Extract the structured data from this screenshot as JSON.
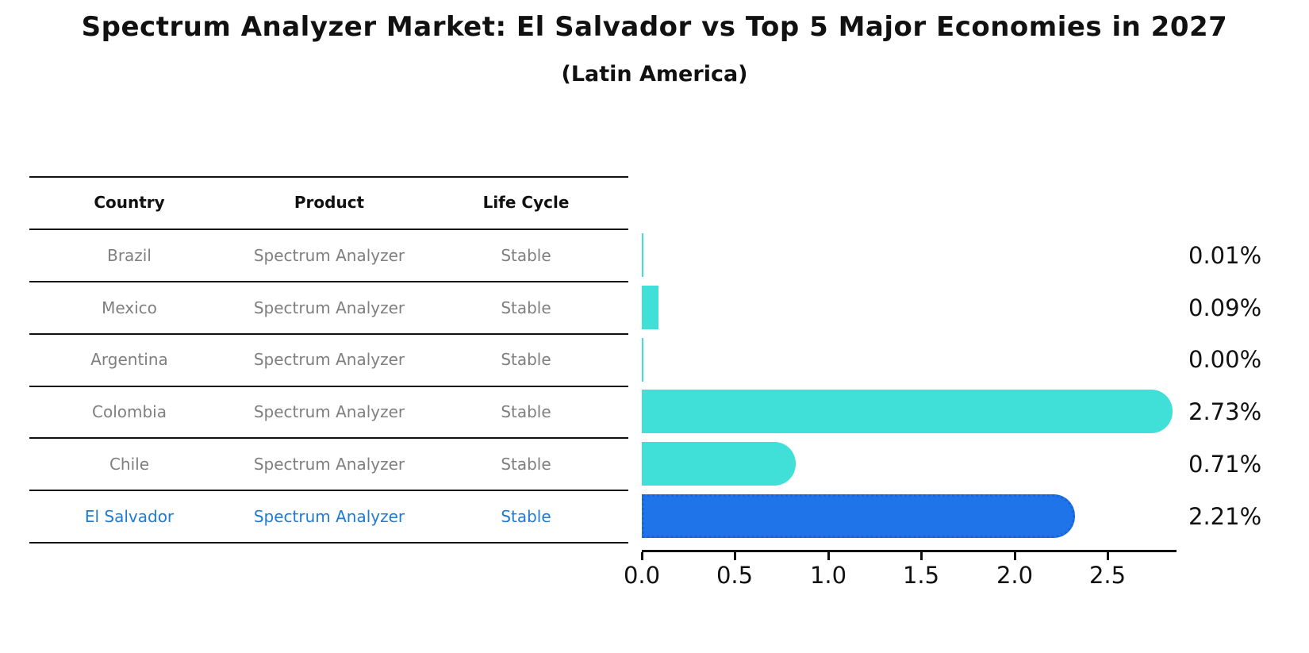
{
  "title": "Spectrum Analyzer Market: El Salvador vs Top 5 Major Economies in 2027",
  "subtitle": "(Latin America)",
  "table": {
    "headers": [
      "Country",
      "Product",
      "Life Cycle"
    ],
    "rows": [
      {
        "country": "Brazil",
        "product": "Spectrum Analyzer",
        "life_cycle": "Stable",
        "highlight": false
      },
      {
        "country": "Mexico",
        "product": "Spectrum Analyzer",
        "life_cycle": "Stable",
        "highlight": false
      },
      {
        "country": "Argentina",
        "product": "Spectrum Analyzer",
        "life_cycle": "Stable",
        "highlight": false
      },
      {
        "country": "Colombia",
        "product": "Spectrum Analyzer",
        "life_cycle": "Stable",
        "highlight": false
      },
      {
        "country": "Chile",
        "product": "Spectrum Analyzer",
        "life_cycle": "Stable",
        "highlight": false
      },
      {
        "country": "El Salvador",
        "product": "Spectrum Analyzer",
        "life_cycle": "Stable",
        "highlight": true
      }
    ]
  },
  "chart_data": {
    "type": "bar",
    "orientation": "horizontal",
    "title": "Spectrum Analyzer Market: El Salvador vs Top 5 Major Economies in 2027",
    "subtitle": "(Latin America)",
    "categories": [
      "Brazil",
      "Mexico",
      "Argentina",
      "Colombia",
      "Chile",
      "El Salvador"
    ],
    "values": [
      0.01,
      0.09,
      0.0,
      2.73,
      0.71,
      2.21
    ],
    "value_labels": [
      "0.01%",
      "0.09%",
      "0.00%",
      "2.73%",
      "0.71%",
      "2.21%"
    ],
    "unit": "percent",
    "xticks": [
      "0.0",
      "0.5",
      "1.0",
      "1.5",
      "2.0",
      "2.5"
    ],
    "xlim": [
      0,
      2.87
    ],
    "grid": false,
    "legend": false,
    "highlight_index": 5
  },
  "colors": {
    "bar_default": "#40E0D8",
    "bar_highlight": "#1E74E8",
    "bar_highlight_border": "#1A64D9",
    "text_black": "#111111",
    "text_gray": "#7f7f7f",
    "text_highlight": "#1f7ad4"
  }
}
